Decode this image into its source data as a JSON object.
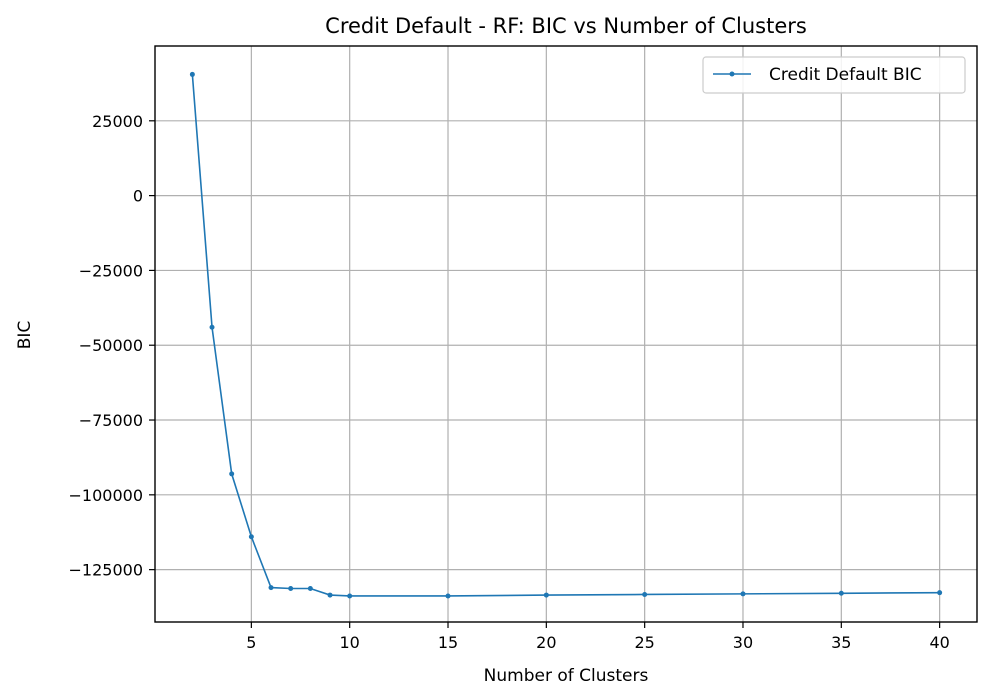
{
  "chart_data": {
    "type": "line",
    "title": "Credit Default - RF: BIC vs Number of Clusters",
    "xlabel": "Number of Clusters",
    "ylabel": "BIC",
    "grid": true,
    "legend_position": "top-right",
    "xlim": [
      0.1,
      41.9
    ],
    "ylim": [
      -142500,
      50000
    ],
    "xticks": [
      5,
      10,
      15,
      20,
      25,
      30,
      35,
      40
    ],
    "xtick_labels": [
      "5",
      "10",
      "15",
      "20",
      "25",
      "30",
      "35",
      "40"
    ],
    "yticks": [
      25000,
      0,
      -25000,
      -50000,
      -75000,
      -100000,
      -125000
    ],
    "ytick_labels": [
      "25000",
      "0",
      "−25000",
      "−50000",
      "−75000",
      "−100000",
      "−125000"
    ],
    "series": [
      {
        "name": "Credit Default BIC",
        "color": "#1f77b4",
        "marker": "point",
        "x": [
          2,
          3,
          4,
          5,
          6,
          7,
          8,
          9,
          10,
          15,
          20,
          25,
          30,
          35,
          40
        ],
        "y": [
          40500,
          -44000,
          -93000,
          -114000,
          -131000,
          -131300,
          -131300,
          -133500,
          -133800,
          -133800,
          -133500,
          -133300,
          -133100,
          -132900,
          -132700
        ]
      }
    ]
  }
}
